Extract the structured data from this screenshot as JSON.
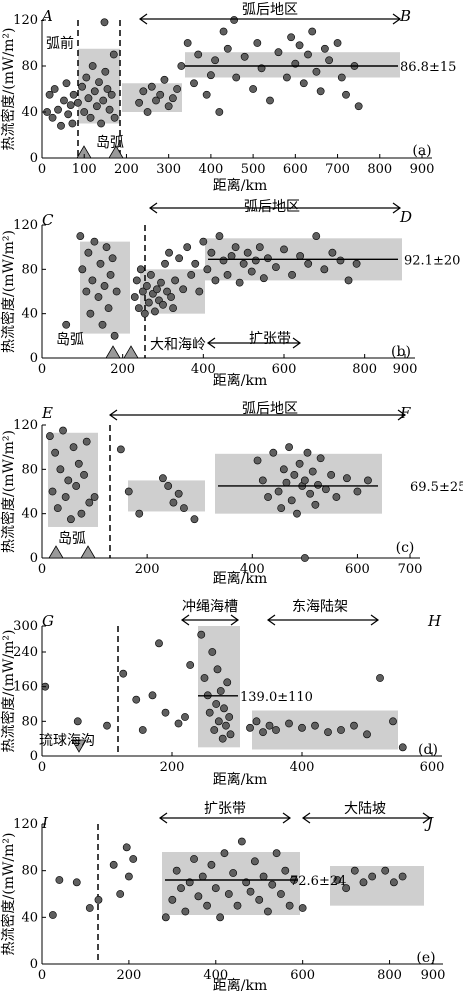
{
  "chart_data": [
    {
      "type": "scatter",
      "panel": "(a)",
      "profile_start": "A",
      "profile_end": "B",
      "xlabel": "距离/km",
      "ylabel": "热流密度/(mW/m²)",
      "xlim": [
        0,
        900
      ],
      "ylim": [
        0,
        120
      ],
      "xticks": [
        "0",
        "100",
        "200",
        "300",
        "400",
        "500",
        "600",
        "700",
        "800",
        "900"
      ],
      "yticks": [
        "0",
        "40",
        "80",
        "120"
      ],
      "region_labels": [
        "弧前",
        "岛弧",
        "弧后地区"
      ],
      "mean_label": "86.8±15",
      "points": [
        [
          12,
          40
        ],
        [
          18,
          55
        ],
        [
          25,
          35
        ],
        [
          30,
          60
        ],
        [
          38,
          42
        ],
        [
          45,
          28
        ],
        [
          52,
          50
        ],
        [
          58,
          65
        ],
        [
          62,
          38
        ],
        [
          68,
          46
        ],
        [
          72,
          30
        ],
        [
          75,
          55
        ],
        [
          85,
          48
        ],
        [
          95,
          62
        ],
        [
          100,
          40
        ],
        [
          105,
          70
        ],
        [
          110,
          52
        ],
        [
          115,
          35
        ],
        [
          120,
          80
        ],
        [
          125,
          58
        ],
        [
          130,
          45
        ],
        [
          135,
          66
        ],
        [
          140,
          30
        ],
        [
          145,
          50
        ],
        [
          150,
          75
        ],
        [
          155,
          60
        ],
        [
          160,
          42
        ],
        [
          165,
          55
        ],
        [
          170,
          90
        ],
        [
          172,
          35
        ],
        [
          148,
          118
        ],
        [
          230,
          48
        ],
        [
          240,
          58
        ],
        [
          250,
          40
        ],
        [
          260,
          62
        ],
        [
          270,
          50
        ],
        [
          280,
          55
        ],
        [
          290,
          68
        ],
        [
          300,
          45
        ],
        [
          310,
          52
        ],
        [
          320,
          60
        ],
        [
          330,
          80
        ],
        [
          345,
          100
        ],
        [
          360,
          65
        ],
        [
          370,
          90
        ],
        [
          390,
          55
        ],
        [
          400,
          72
        ],
        [
          410,
          85
        ],
        [
          420,
          40
        ],
        [
          430,
          110
        ],
        [
          440,
          95
        ],
        [
          455,
          120
        ],
        [
          460,
          70
        ],
        [
          480,
          88
        ],
        [
          500,
          60
        ],
        [
          510,
          100
        ],
        [
          520,
          78
        ],
        [
          540,
          50
        ],
        [
          560,
          92
        ],
        [
          580,
          70
        ],
        [
          590,
          105
        ],
        [
          600,
          82
        ],
        [
          610,
          98
        ],
        [
          620,
          65
        ],
        [
          630,
          90
        ],
        [
          640,
          110
        ],
        [
          650,
          75
        ],
        [
          660,
          58
        ],
        [
          670,
          95
        ],
        [
          680,
          85
        ],
        [
          700,
          100
        ],
        [
          710,
          70
        ],
        [
          720,
          55
        ],
        [
          740,
          80
        ],
        [
          750,
          45
        ]
      ]
    },
    {
      "type": "scatter",
      "panel": "(b)",
      "profile_start": "C",
      "profile_end": "D",
      "xlabel": "距离/km",
      "ylabel": "热流密度/(mW/m²)",
      "xlim": [
        0,
        900
      ],
      "ylim": [
        0,
        120
      ],
      "xticks": [
        "0",
        "200",
        "400",
        "600",
        "800",
        "900"
      ],
      "yticks": [
        "0",
        "40",
        "80",
        "120"
      ],
      "region_labels": [
        "弧后地区",
        "岛弧",
        "大和海岭",
        "扩张带"
      ],
      "mean_label": "92.1±20",
      "points": [
        [
          60,
          30
        ],
        [
          95,
          110
        ],
        [
          100,
          80
        ],
        [
          110,
          60
        ],
        [
          115,
          95
        ],
        [
          120,
          40
        ],
        [
          125,
          70
        ],
        [
          130,
          105
        ],
        [
          140,
          55
        ],
        [
          145,
          85
        ],
        [
          150,
          30
        ],
        [
          155,
          65
        ],
        [
          160,
          100
        ],
        [
          165,
          45
        ],
        [
          170,
          75
        ],
        [
          175,
          90
        ],
        [
          180,
          20
        ],
        [
          185,
          60
        ],
        [
          230,
          55
        ],
        [
          235,
          70
        ],
        [
          240,
          45
        ],
        [
          245,
          80
        ],
        [
          250,
          60
        ],
        [
          255,
          40
        ],
        [
          260,
          65
        ],
        [
          265,
          50
        ],
        [
          270,
          75
        ],
        [
          275,
          58
        ],
        [
          280,
          42
        ],
        [
          285,
          62
        ],
        [
          290,
          52
        ],
        [
          295,
          68
        ],
        [
          300,
          48
        ],
        [
          305,
          85
        ],
        [
          310,
          60
        ],
        [
          315,
          95
        ],
        [
          320,
          55
        ],
        [
          325,
          45
        ],
        [
          330,
          70
        ],
        [
          340,
          90
        ],
        [
          350,
          62
        ],
        [
          360,
          100
        ],
        [
          370,
          75
        ],
        [
          380,
          85
        ],
        [
          390,
          60
        ],
        [
          400,
          105
        ],
        [
          410,
          80
        ],
        [
          420,
          95
        ],
        [
          430,
          70
        ],
        [
          440,
          110
        ],
        [
          450,
          88
        ],
        [
          460,
          75
        ],
        [
          470,
          92
        ],
        [
          480,
          100
        ],
        [
          490,
          68
        ],
        [
          500,
          85
        ],
        [
          510,
          95
        ],
        [
          520,
          78
        ],
        [
          530,
          88
        ],
        [
          540,
          100
        ],
        [
          550,
          72
        ],
        [
          560,
          90
        ],
        [
          580,
          82
        ],
        [
          600,
          98
        ],
        [
          620,
          75
        ],
        [
          640,
          92
        ],
        [
          660,
          85
        ],
        [
          680,
          110
        ],
        [
          700,
          80
        ],
        [
          720,
          95
        ],
        [
          740,
          88
        ],
        [
          760,
          70
        ],
        [
          780,
          85
        ]
      ]
    },
    {
      "type": "scatter",
      "panel": "(c)",
      "profile_start": "E",
      "profile_end": "F",
      "xlabel": "距离/km",
      "ylabel": "热流密度/(mW/m²)",
      "xlim": [
        0,
        700
      ],
      "ylim": [
        0,
        120
      ],
      "xticks": [
        "0",
        "200",
        "400",
        "600",
        "700"
      ],
      "yticks": [
        "0",
        "40",
        "80",
        "120"
      ],
      "region_labels": [
        "弧后地区",
        "岛弧"
      ],
      "mean_label": "69.5±25",
      "points": [
        [
          15,
          110
        ],
        [
          20,
          60
        ],
        [
          25,
          95
        ],
        [
          30,
          45
        ],
        [
          35,
          80
        ],
        [
          40,
          115
        ],
        [
          45,
          55
        ],
        [
          50,
          70
        ],
        [
          55,
          35
        ],
        [
          60,
          100
        ],
        [
          65,
          65
        ],
        [
          70,
          85
        ],
        [
          75,
          40
        ],
        [
          80,
          75
        ],
        [
          85,
          105
        ],
        [
          90,
          50
        ],
        [
          100,
          55
        ],
        [
          150,
          98
        ],
        [
          165,
          60
        ],
        [
          185,
          40
        ],
        [
          230,
          72
        ],
        [
          240,
          65
        ],
        [
          250,
          50
        ],
        [
          260,
          58
        ],
        [
          270,
          45
        ],
        [
          290,
          35
        ],
        [
          410,
          88
        ],
        [
          420,
          70
        ],
        [
          430,
          55
        ],
        [
          440,
          95
        ],
        [
          450,
          60
        ],
        [
          455,
          45
        ],
        [
          460,
          80
        ],
        [
          465,
          68
        ],
        [
          470,
          100
        ],
        [
          475,
          52
        ],
        [
          480,
          75
        ],
        [
          485,
          40
        ],
        [
          490,
          85
        ],
        [
          495,
          65
        ],
        [
          500,
          70
        ],
        [
          505,
          95
        ],
        [
          510,
          58
        ],
        [
          515,
          78
        ],
        [
          520,
          48
        ],
        [
          525,
          66
        ],
        [
          530,
          90
        ],
        [
          540,
          62
        ],
        [
          550,
          75
        ],
        [
          560,
          55
        ],
        [
          580,
          72
        ],
        [
          600,
          60
        ],
        [
          620,
          70
        ],
        [
          500,
          0
        ]
      ]
    },
    {
      "type": "scatter",
      "panel": "(d)",
      "profile_start": "G",
      "profile_end": "H",
      "xlabel": "距离/km",
      "ylabel": "热流密度/(mW/m²)",
      "xlim": [
        0,
        600
      ],
      "ylim": [
        0,
        300
      ],
      "xticks": [
        "0",
        "200",
        "400",
        "600"
      ],
      "yticks": [
        "0",
        "80",
        "160",
        "240",
        "300"
      ],
      "region_labels": [
        "冲绳海槽",
        "东海陆架",
        "琉球海沟"
      ],
      "mean_label": "139.0±110",
      "points": [
        [
          5,
          160
        ],
        [
          55,
          80
        ],
        [
          100,
          70
        ],
        [
          125,
          190
        ],
        [
          145,
          130
        ],
        [
          155,
          60
        ],
        [
          170,
          140
        ],
        [
          180,
          260
        ],
        [
          190,
          100
        ],
        [
          210,
          75
        ],
        [
          220,
          90
        ],
        [
          228,
          210
        ],
        [
          245,
          280
        ],
        [
          250,
          180
        ],
        [
          255,
          140
        ],
        [
          258,
          100
        ],
        [
          262,
          240
        ],
        [
          265,
          60
        ],
        [
          268,
          120
        ],
        [
          270,
          200
        ],
        [
          272,
          80
        ],
        [
          275,
          150
        ],
        [
          278,
          40
        ],
        [
          280,
          110
        ],
        [
          283,
          70
        ],
        [
          285,
          170
        ],
        [
          288,
          90
        ],
        [
          290,
          50
        ],
        [
          320,
          65
        ],
        [
          330,
          80
        ],
        [
          340,
          55
        ],
        [
          350,
          70
        ],
        [
          360,
          60
        ],
        [
          380,
          75
        ],
        [
          400,
          65
        ],
        [
          420,
          70
        ],
        [
          440,
          55
        ],
        [
          460,
          60
        ],
        [
          480,
          70
        ],
        [
          500,
          50
        ],
        [
          520,
          180
        ],
        [
          540,
          80
        ],
        [
          555,
          20
        ]
      ]
    },
    {
      "type": "scatter",
      "panel": "(e)",
      "profile_start": "I",
      "profile_end": "J",
      "xlabel": "距离/km",
      "ylabel": "热流密度/(mW/m²)",
      "xlim": [
        0,
        900
      ],
      "ylim": [
        0,
        120
      ],
      "xticks": [
        "0",
        "200",
        "400",
        "600",
        "800",
        "900"
      ],
      "yticks": [
        "0",
        "40",
        "80",
        "120"
      ],
      "region_labels": [
        "扩张带",
        "大陆坡"
      ],
      "mean_label": "72.6±24",
      "points": [
        [
          25,
          42
        ],
        [
          40,
          72
        ],
        [
          80,
          70
        ],
        [
          110,
          48
        ],
        [
          130,
          55
        ],
        [
          165,
          85
        ],
        [
          180,
          60
        ],
        [
          195,
          100
        ],
        [
          200,
          75
        ],
        [
          210,
          90
        ],
        [
          285,
          40
        ],
        [
          300,
          55
        ],
        [
          310,
          80
        ],
        [
          320,
          65
        ],
        [
          330,
          45
        ],
        [
          340,
          70
        ],
        [
          350,
          90
        ],
        [
          360,
          58
        ],
        [
          370,
          75
        ],
        [
          380,
          50
        ],
        [
          390,
          85
        ],
        [
          400,
          65
        ],
        [
          410,
          40
        ],
        [
          420,
          95
        ],
        [
          430,
          60
        ],
        [
          440,
          78
        ],
        [
          450,
          50
        ],
        [
          460,
          105
        ],
        [
          470,
          70
        ],
        [
          480,
          62
        ],
        [
          490,
          88
        ],
        [
          500,
          55
        ],
        [
          510,
          75
        ],
        [
          520,
          45
        ],
        [
          530,
          68
        ],
        [
          540,
          95
        ],
        [
          550,
          60
        ],
        [
          560,
          80
        ],
        [
          570,
          50
        ],
        [
          580,
          72
        ],
        [
          600,
          48
        ],
        [
          680,
          72
        ],
        [
          700,
          65
        ],
        [
          720,
          80
        ],
        [
          740,
          70
        ],
        [
          760,
          75
        ],
        [
          790,
          80
        ],
        [
          810,
          70
        ],
        [
          830,
          75
        ]
      ]
    }
  ]
}
